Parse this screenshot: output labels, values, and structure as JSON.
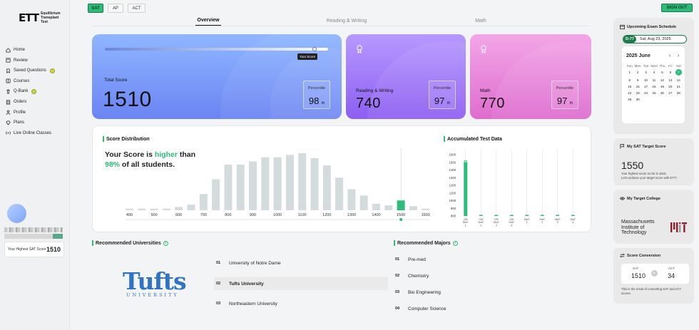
{
  "app": {
    "logo_mark": "ETT",
    "logo_text_line1": "Equilibrium",
    "logo_text_line2": "Transplant Test"
  },
  "top_tabs": [
    "SAT",
    "AP",
    "ACT"
  ],
  "sign_out": "SIGN OUT",
  "view_tabs": [
    "Overview",
    "Reading & Writing",
    "Math"
  ],
  "sidebar": {
    "items": [
      {
        "label": "Home",
        "icon": "home-icon"
      },
      {
        "label": "Review",
        "icon": "review-icon"
      },
      {
        "label": "Saved Questions",
        "icon": "bookmark-icon",
        "badge": true
      },
      {
        "label": "Courses",
        "icon": "book-icon"
      },
      {
        "label": "Q-Bank",
        "icon": "trash-bank-icon",
        "badge": true
      },
      {
        "label": "Orders",
        "icon": "orders-icon"
      },
      {
        "label": "Profile",
        "icon": "user-icon"
      },
      {
        "label": "Plans",
        "icon": "diamond-icon"
      },
      {
        "label": "Live Online Classes",
        "icon": "broadcast-icon"
      }
    ],
    "highest_label": "Your Highest SAT Score",
    "highest_value": "1510"
  },
  "total": {
    "slider_tag": "Your Score",
    "label": "Total Score",
    "value": "1510",
    "percentile_label": "Percentile",
    "percentile": "98",
    "suffix": "th",
    "score_fraction": 0.95
  },
  "rw": {
    "label": "Reading & Writing",
    "value": "740",
    "percentile_label": "Percentile",
    "percentile": "97",
    "suffix": "th"
  },
  "math": {
    "label": "Math",
    "value": "770",
    "percentile_label": "Percentile",
    "percentile": "97",
    "suffix": "th"
  },
  "distribution": {
    "title": "Score Distribution",
    "line1a": "Your Score is ",
    "line1b": "higher",
    "line1c": " than",
    "line2a": "98%",
    "line2b": " of all students."
  },
  "chart_data": [
    {
      "type": "bar",
      "title": "Score Distribution",
      "categories": [
        400,
        450,
        500,
        550,
        600,
        650,
        700,
        750,
        800,
        850,
        900,
        950,
        1000,
        1050,
        1100,
        1150,
        1200,
        1250,
        1300,
        1350,
        1400,
        1450,
        1500,
        1550,
        1600
      ],
      "tick_labels": [
        "400",
        "500",
        "600",
        "700",
        "800",
        "900",
        "1000",
        "1100",
        "1200",
        "1300",
        "1400",
        "1500",
        "1600"
      ],
      "values": [
        2,
        2,
        2,
        2,
        4,
        7,
        20,
        38,
        56,
        56,
        60,
        65,
        65,
        68,
        70,
        64,
        55,
        40,
        26,
        18,
        8,
        6,
        12,
        5,
        2
      ],
      "highlight": "1500"
    },
    {
      "type": "bar",
      "title": "Accumulated Test Data",
      "ylim": [
        800,
        1600
      ],
      "yticks": [
        "1600",
        "1500",
        "1400",
        "1300",
        "1200",
        "1100",
        "1000",
        "900",
        "800"
      ],
      "categories": [
        "CM\nDiaT\n1",
        "CM\nDiaT\n2",
        "CM\nDiaT\n3",
        "CM\nDiaT\n4",
        "DiaT\n1",
        "DiaT\n2",
        "DiaT\n3",
        "DiaT\n4"
      ],
      "values": [
        1510,
        800,
        800,
        800,
        800,
        800,
        800,
        800
      ]
    }
  ],
  "accum_title": "Accumulated Test Data",
  "universities": {
    "title": "Recommended Universities",
    "logo": "Tufts",
    "logo_sub": "UNIVERSITY",
    "items": [
      {
        "n": "01",
        "name": "University of Notre Dame"
      },
      {
        "n": "02",
        "name": "Tufts University"
      },
      {
        "n": "03",
        "name": "Northeastern University"
      }
    ]
  },
  "majors": {
    "title": "Recommended Majors",
    "items": [
      {
        "n": "01",
        "name": "Pre-med"
      },
      {
        "n": "02",
        "name": "Chemistry"
      },
      {
        "n": "03",
        "name": "Bio Engineering"
      },
      {
        "n": "04",
        "name": "Computer Science"
      }
    ]
  },
  "exam": {
    "title": "Upcoming Exam Schedule",
    "dday": "D-77",
    "date": "Sat, Aug 23, 2025",
    "cal_title": "2025 June",
    "weekdays": [
      "Sun",
      "Mon",
      "Tue",
      "Wed",
      "Thu",
      "Fri",
      "Sat"
    ],
    "days": [
      "1",
      "2",
      "3",
      "4",
      "5",
      "6",
      "7",
      "8",
      "9",
      "10",
      "11",
      "12",
      "13",
      "14",
      "15",
      "16",
      "17",
      "18",
      "19",
      "20",
      "21",
      "22",
      "23",
      "24",
      "25",
      "26",
      "27",
      "28",
      "29",
      "30"
    ],
    "selected": "7"
  },
  "target": {
    "title": "My SAT Target Score",
    "value": "1550",
    "note": "Your highest score so far is 1510.",
    "note2": "Let's achieve your target score with ETT!"
  },
  "college": {
    "title": "My Target College",
    "name1": "Massachusetts",
    "name2": "Institute of",
    "name3": "Technology"
  },
  "conversion": {
    "title": "Score Conversion",
    "sat_label": "SAT",
    "sat": "1510",
    "act_label": "ACT",
    "act": "34",
    "note": "This is the result of converting SAT and ACT scores."
  }
}
